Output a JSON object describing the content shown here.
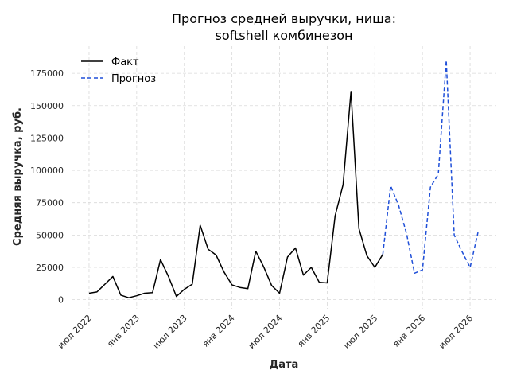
{
  "chart_data": {
    "type": "line",
    "title_line1": "Прогноз средней выручки, ниша:",
    "title_line2": "softshell комбинезон",
    "xlabel": "Дата",
    "ylabel": "Средняя выручка, руб.",
    "ylim": [
      -7000,
      196000
    ],
    "yticks": [
      0,
      25000,
      50000,
      75000,
      100000,
      125000,
      150000,
      175000
    ],
    "ytick_labels": [
      "0",
      "25000",
      "50000",
      "75000",
      "100000",
      "125000",
      "150000",
      "175000"
    ],
    "xtick_labels": [
      "июл 2022",
      "янв 2023",
      "июл 2023",
      "янв 2024",
      "июл 2024",
      "янв 2025",
      "июл 2025",
      "янв 2026",
      "июл 2026"
    ],
    "xtick_months": [
      6,
      12,
      18,
      24,
      30,
      36,
      42,
      48,
      54
    ],
    "x_unit": "months since янв 2022",
    "grid": true,
    "legend": {
      "placement": "top-left",
      "entries": [
        "Факт",
        "Прогноз"
      ]
    },
    "series": [
      {
        "name": "Факт",
        "color": "#000000",
        "style": "solid",
        "x": [
          6,
          7,
          8,
          9,
          10,
          11,
          12,
          13,
          14,
          15,
          16,
          17,
          18,
          19,
          20,
          21,
          22,
          23,
          24,
          25,
          26,
          27,
          28,
          29,
          30,
          31,
          32,
          33,
          34,
          35,
          36,
          37,
          38,
          39,
          40,
          41,
          42,
          43
        ],
        "values": [
          5000,
          6000,
          12000,
          18000,
          3500,
          1500,
          3000,
          5000,
          5500,
          31000,
          18000,
          2500,
          8000,
          12000,
          57500,
          39000,
          34500,
          21500,
          11500,
          9500,
          8500,
          37500,
          25500,
          11000,
          5000,
          33000,
          40000,
          19000,
          25000,
          13500,
          13000,
          65000,
          89000,
          161000,
          55000,
          34000,
          25000,
          35000
        ]
      },
      {
        "name": "Прогноз",
        "color": "#1f4fd8",
        "style": "dashed",
        "x": [
          43,
          44,
          45,
          46,
          47,
          48,
          49,
          50,
          51,
          52,
          53,
          54,
          55
        ],
        "values": [
          35000,
          88000,
          73000,
          51000,
          20500,
          23000,
          87000,
          97000,
          185000,
          50000,
          37000,
          25000,
          52000
        ]
      }
    ]
  }
}
